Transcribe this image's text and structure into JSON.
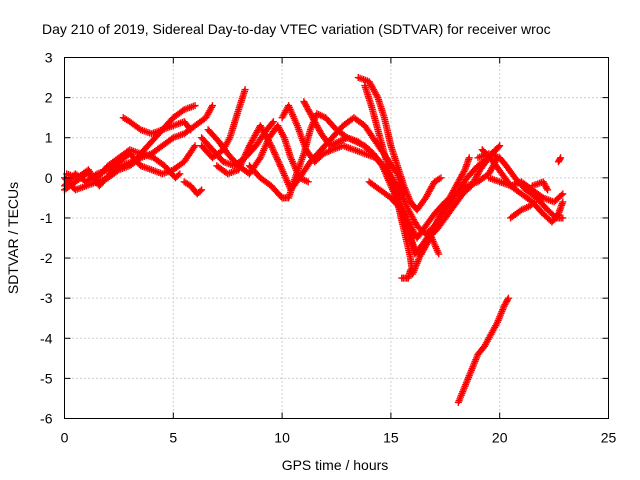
{
  "chart_data": {
    "type": "scatter",
    "title": "Day 210 of 2019, Sidereal Day-to-day VTEC variation (SDTVAR) for receiver wroc",
    "xlabel": "GPS time / hours",
    "ylabel": "SDTVAR / TECUs",
    "xlim": [
      0,
      25
    ],
    "ylim": [
      -6,
      3
    ],
    "xticks": [
      "0",
      "5",
      "10",
      "15",
      "20",
      "25"
    ],
    "yticks": [
      "3",
      "2",
      "1",
      "0",
      "-1",
      "-2",
      "-3",
      "-4",
      "-5",
      "-6"
    ],
    "grid": true,
    "marker": "plus",
    "color": "#ff0000",
    "series": [
      {
        "points": [
          [
            0.0,
            -0.3
          ],
          [
            0.5,
            -0.1
          ],
          [
            1.0,
            0.1
          ],
          [
            1.5,
            0.0
          ],
          [
            2.0,
            0.3
          ],
          [
            2.5,
            0.5
          ],
          [
            3.0,
            0.7
          ],
          [
            3.5,
            0.6
          ],
          [
            4.0,
            0.9
          ],
          [
            4.5,
            1.2
          ],
          [
            5.0,
            1.5
          ],
          [
            5.5,
            1.7
          ],
          [
            6.0,
            1.8
          ]
        ]
      },
      {
        "points": [
          [
            0.0,
            -0.2
          ],
          [
            0.5,
            0.1
          ],
          [
            1.0,
            -0.1
          ],
          [
            1.5,
            0.1
          ],
          [
            2.0,
            0.2
          ],
          [
            2.5,
            0.4
          ],
          [
            3.0,
            0.6
          ],
          [
            3.5,
            0.3
          ],
          [
            4.0,
            0.2
          ],
          [
            4.5,
            0.1
          ],
          [
            5.0,
            0.2
          ],
          [
            5.5,
            0.4
          ],
          [
            6.0,
            0.8
          ]
        ]
      },
      {
        "points": [
          [
            0.0,
            0.0
          ],
          [
            0.5,
            -0.3
          ],
          [
            1.0,
            -0.2
          ],
          [
            1.5,
            -0.1
          ],
          [
            2.0,
            0.0
          ],
          [
            2.5,
            0.2
          ],
          [
            3.0,
            0.3
          ],
          [
            3.5,
            0.5
          ],
          [
            4.0,
            0.6
          ],
          [
            4.5,
            0.8
          ],
          [
            5.0,
            1.0
          ],
          [
            5.5,
            1.1
          ],
          [
            6.0,
            1.3
          ],
          [
            6.5,
            1.5
          ],
          [
            6.8,
            1.8
          ]
        ]
      },
      {
        "points": [
          [
            0.1,
            0.1
          ],
          [
            0.6,
            0.0
          ],
          [
            1.1,
            0.2
          ],
          [
            1.6,
            -0.2
          ],
          [
            2.1,
            0.1
          ],
          [
            2.6,
            0.3
          ],
          [
            3.1,
            0.4
          ],
          [
            3.6,
            0.6
          ],
          [
            4.1,
            0.5
          ],
          [
            4.6,
            0.3
          ],
          [
            5.1,
            0.0
          ],
          [
            5.3,
            0.1
          ]
        ]
      },
      {
        "points": [
          [
            2.7,
            1.5
          ],
          [
            3.0,
            1.4
          ],
          [
            3.5,
            1.2
          ],
          [
            4.0,
            1.1
          ],
          [
            4.5,
            1.2
          ],
          [
            5.0,
            1.3
          ],
          [
            5.5,
            1.4
          ],
          [
            5.8,
            1.2
          ]
        ]
      },
      {
        "points": [
          [
            5.5,
            -0.1
          ],
          [
            5.8,
            -0.2
          ],
          [
            6.1,
            -0.4
          ],
          [
            6.3,
            -0.3
          ]
        ]
      },
      {
        "points": [
          [
            6.3,
            1.0
          ],
          [
            6.8,
            0.7
          ],
          [
            7.3,
            0.4
          ],
          [
            7.8,
            0.3
          ],
          [
            8.3,
            0.5
          ],
          [
            8.8,
            0.8
          ],
          [
            9.3,
            1.2
          ],
          [
            9.6,
            1.4
          ]
        ]
      },
      {
        "points": [
          [
            6.3,
            0.8
          ],
          [
            6.8,
            0.5
          ],
          [
            7.3,
            0.7
          ],
          [
            7.6,
            1.0
          ],
          [
            8.0,
            1.7
          ],
          [
            8.3,
            2.2
          ]
        ]
      },
      {
        "points": [
          [
            6.6,
            1.2
          ],
          [
            7.1,
            0.9
          ],
          [
            7.5,
            0.6
          ],
          [
            8.0,
            0.3
          ],
          [
            8.5,
            0.1
          ],
          [
            9.0,
            0.5
          ],
          [
            9.4,
            1.0
          ],
          [
            9.8,
            1.3
          ],
          [
            10.1,
            1.0
          ],
          [
            10.4,
            0.5
          ],
          [
            10.8,
            0.0
          ],
          [
            11.2,
            -0.1
          ]
        ]
      },
      {
        "points": [
          [
            7.0,
            0.3
          ],
          [
            7.5,
            0.1
          ],
          [
            8.0,
            0.2
          ],
          [
            8.5,
            0.8
          ],
          [
            9.0,
            1.3
          ],
          [
            9.5,
            0.8
          ],
          [
            10.0,
            0.2
          ],
          [
            10.4,
            -0.3
          ],
          [
            10.8,
            0.0
          ],
          [
            11.3,
            0.4
          ],
          [
            11.8,
            0.7
          ],
          [
            12.3,
            1.0
          ],
          [
            12.8,
            1.3
          ],
          [
            13.3,
            1.5
          ],
          [
            13.8,
            1.3
          ],
          [
            14.3,
            0.9
          ],
          [
            14.8,
            0.5
          ],
          [
            15.3,
            0.1
          ],
          [
            15.6,
            -0.4
          ]
        ]
      },
      {
        "points": [
          [
            8.5,
            0.3
          ],
          [
            9.0,
            0.0
          ],
          [
            9.5,
            -0.2
          ],
          [
            10.0,
            -0.5
          ],
          [
            10.3,
            -0.5
          ],
          [
            10.6,
            0.0
          ],
          [
            11.0,
            0.6
          ],
          [
            11.3,
            1.2
          ],
          [
            11.6,
            1.6
          ],
          [
            12.0,
            1.5
          ],
          [
            12.5,
            1.2
          ],
          [
            13.0,
            1.0
          ],
          [
            13.5,
            0.9
          ],
          [
            14.0,
            0.7
          ],
          [
            14.5,
            0.4
          ],
          [
            15.0,
            0.0
          ],
          [
            15.3,
            -0.4
          ],
          [
            15.6,
            -0.9
          ],
          [
            15.9,
            -1.5
          ],
          [
            16.1,
            -1.9
          ],
          [
            16.4,
            -1.7
          ],
          [
            16.8,
            -1.4
          ],
          [
            17.2,
            -1.9
          ]
        ]
      },
      {
        "points": [
          [
            10.0,
            1.5
          ],
          [
            10.3,
            1.8
          ],
          [
            10.7,
            1.3
          ],
          [
            11.1,
            0.7
          ],
          [
            11.5,
            0.4
          ],
          [
            11.9,
            0.6
          ],
          [
            12.3,
            0.7
          ],
          [
            12.8,
            0.8
          ],
          [
            13.3,
            0.7
          ],
          [
            13.8,
            0.6
          ],
          [
            14.3,
            0.5
          ],
          [
            14.8,
            0.2
          ],
          [
            15.3,
            -0.2
          ],
          [
            15.8,
            -0.8
          ],
          [
            16.2,
            -1.2
          ],
          [
            16.6,
            -1.4
          ],
          [
            17.0,
            -1.2
          ],
          [
            17.5,
            -0.8
          ],
          [
            18.0,
            -0.4
          ],
          [
            18.5,
            0.0
          ],
          [
            19.0,
            0.3
          ],
          [
            19.5,
            0.5
          ],
          [
            20.0,
            0.8
          ]
        ]
      },
      {
        "points": [
          [
            11.0,
            1.9
          ],
          [
            11.4,
            1.5
          ],
          [
            11.8,
            1.1
          ],
          [
            12.2,
            0.8
          ],
          [
            12.6,
            0.9
          ],
          [
            13.0,
            1.0
          ],
          [
            13.4,
            0.9
          ],
          [
            13.8,
            0.8
          ],
          [
            14.2,
            0.6
          ],
          [
            14.6,
            0.3
          ],
          [
            15.0,
            -0.2
          ],
          [
            15.4,
            -0.7
          ],
          [
            15.8,
            -1.3
          ],
          [
            16.1,
            -1.8
          ],
          [
            16.4,
            -1.9
          ],
          [
            16.8,
            -1.5
          ],
          [
            17.2,
            -1.0
          ],
          [
            17.6,
            -0.6
          ],
          [
            18.0,
            -0.2
          ],
          [
            18.4,
            0.2
          ],
          [
            18.6,
            0.5
          ]
        ]
      },
      {
        "points": [
          [
            13.5,
            2.5
          ],
          [
            14.0,
            2.4
          ],
          [
            14.4,
            2.0
          ],
          [
            14.7,
            1.5
          ],
          [
            15.0,
            0.8
          ],
          [
            15.3,
            0.3
          ],
          [
            15.6,
            -0.2
          ],
          [
            15.9,
            -0.6
          ],
          [
            16.2,
            -0.8
          ],
          [
            16.6,
            -0.5
          ],
          [
            17.0,
            -0.1
          ],
          [
            17.3,
            0.0
          ]
        ]
      },
      {
        "points": [
          [
            13.8,
            2.3
          ],
          [
            14.1,
            1.8
          ],
          [
            14.4,
            1.2
          ],
          [
            14.7,
            0.6
          ],
          [
            15.0,
            0.0
          ],
          [
            15.3,
            -0.6
          ],
          [
            15.6,
            -1.3
          ],
          [
            15.9,
            -2.0
          ],
          [
            16.0,
            -2.4
          ],
          [
            16.3,
            -2.0
          ],
          [
            16.7,
            -1.5
          ],
          [
            17.1,
            -1.3
          ],
          [
            17.5,
            -1.0
          ],
          [
            17.9,
            -0.7
          ],
          [
            18.3,
            -0.4
          ],
          [
            18.7,
            -0.2
          ],
          [
            19.1,
            0.2
          ],
          [
            19.5,
            0.5
          ],
          [
            19.8,
            0.7
          ]
        ]
      },
      {
        "points": [
          [
            14.0,
            -0.1
          ],
          [
            14.5,
            -0.3
          ],
          [
            15.0,
            -0.5
          ],
          [
            15.5,
            -0.8
          ],
          [
            15.9,
            -1.2
          ],
          [
            16.2,
            -1.5
          ],
          [
            16.6,
            -1.2
          ],
          [
            17.0,
            -0.9
          ],
          [
            17.5,
            -0.6
          ],
          [
            18.0,
            -0.4
          ],
          [
            18.5,
            -0.2
          ],
          [
            19.0,
            -0.1
          ],
          [
            19.5,
            0.1
          ],
          [
            19.9,
            0.5
          ]
        ]
      },
      {
        "points": [
          [
            15.5,
            -2.5
          ],
          [
            15.8,
            -2.5
          ],
          [
            15.9,
            -2.3
          ]
        ]
      },
      {
        "points": [
          [
            18.1,
            -5.6
          ],
          [
            18.4,
            -5.2
          ],
          [
            18.7,
            -4.8
          ],
          [
            19.0,
            -4.4
          ],
          [
            19.3,
            -4.2
          ],
          [
            19.6,
            -3.9
          ],
          [
            19.9,
            -3.6
          ],
          [
            20.2,
            -3.2
          ],
          [
            20.4,
            -3.0
          ]
        ]
      },
      {
        "points": [
          [
            19.0,
            0.5
          ],
          [
            19.5,
            0.6
          ],
          [
            20.0,
            0.5
          ],
          [
            20.3,
            0.3
          ],
          [
            20.7,
            0.0
          ],
          [
            21.2,
            -0.3
          ],
          [
            21.7,
            -0.5
          ],
          [
            22.2,
            -0.8
          ],
          [
            22.6,
            -1.0
          ],
          [
            22.9,
            -1.0
          ]
        ]
      },
      {
        "points": [
          [
            19.2,
            0.7
          ],
          [
            19.7,
            0.4
          ],
          [
            20.1,
            0.1
          ],
          [
            20.5,
            -0.2
          ],
          [
            21.0,
            -0.4
          ],
          [
            21.5,
            -0.6
          ],
          [
            22.0,
            -0.9
          ],
          [
            22.4,
            -1.1
          ],
          [
            22.7,
            -0.9
          ],
          [
            22.9,
            -0.6
          ]
        ]
      },
      {
        "points": [
          [
            19.5,
            0.0
          ],
          [
            20.0,
            -0.1
          ],
          [
            20.5,
            -0.2
          ],
          [
            21.0,
            -0.1
          ],
          [
            21.5,
            -0.3
          ],
          [
            22.0,
            -0.5
          ],
          [
            22.5,
            -0.6
          ],
          [
            22.9,
            -0.4
          ]
        ]
      },
      {
        "points": [
          [
            20.5,
            -1.0
          ],
          [
            21.0,
            -0.8
          ],
          [
            21.4,
            -0.7
          ],
          [
            21.6,
            -0.6
          ]
        ]
      },
      {
        "points": [
          [
            21.5,
            -0.2
          ],
          [
            22.0,
            -0.1
          ],
          [
            22.2,
            -0.3
          ]
        ]
      },
      {
        "points": [
          [
            22.7,
            0.4
          ],
          [
            22.8,
            0.5
          ]
        ]
      }
    ]
  }
}
